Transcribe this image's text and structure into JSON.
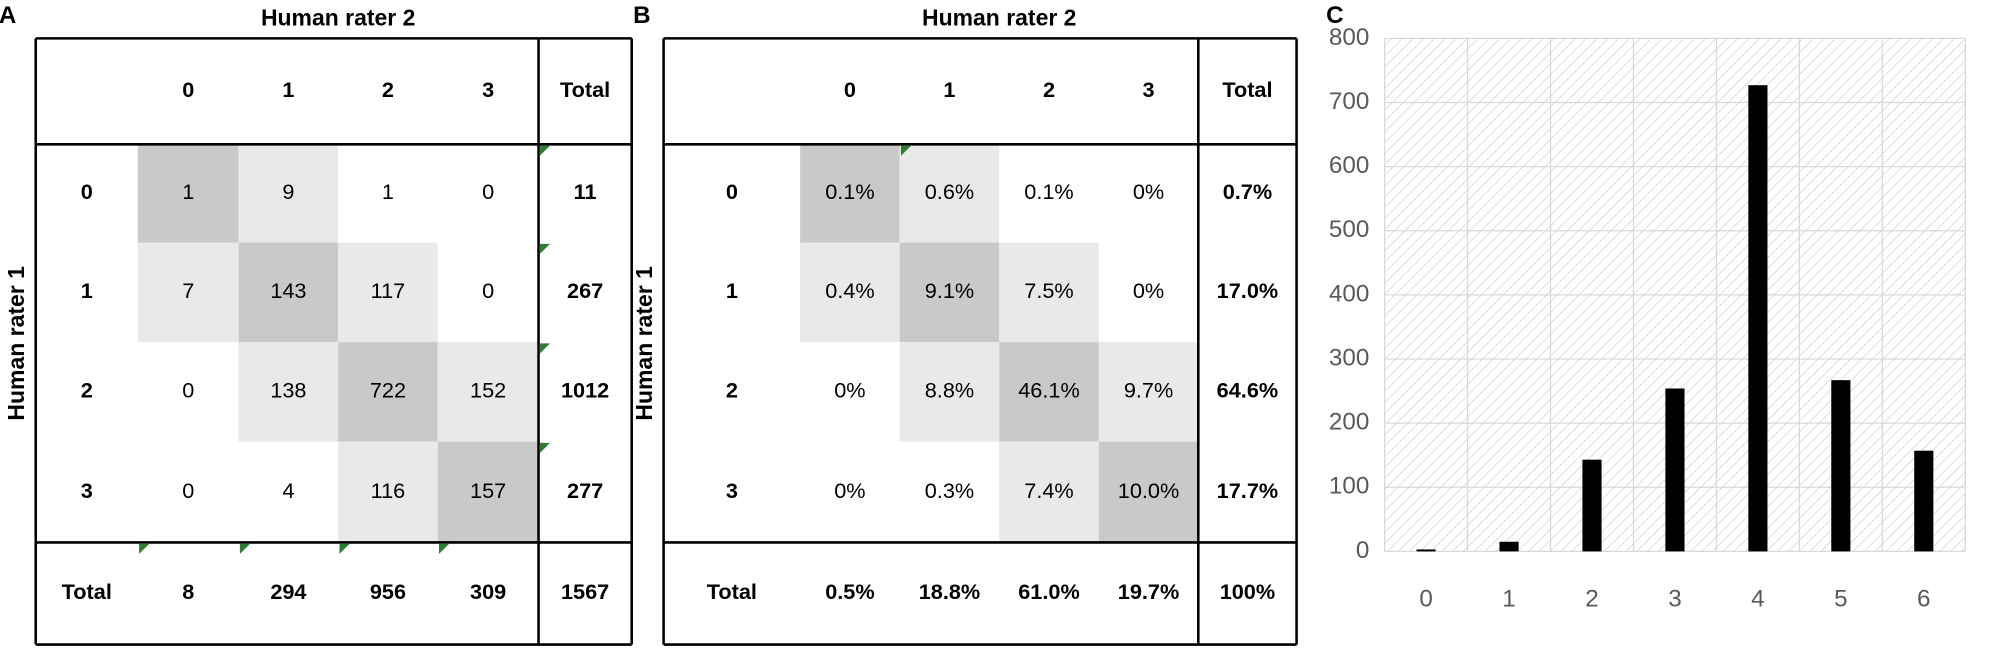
{
  "tables": [
    {
      "label": "A",
      "col_title": "Human rater 2",
      "row_title": "Human rater 1",
      "columns": [
        "0",
        "1",
        "2",
        "3",
        "Total"
      ],
      "rows": [
        {
          "label": "0",
          "cells": [
            1,
            9,
            1,
            0,
            11
          ]
        },
        {
          "label": "1",
          "cells": [
            7,
            143,
            117,
            0,
            267
          ]
        },
        {
          "label": "2",
          "cells": [
            0,
            138,
            722,
            152,
            1012
          ]
        },
        {
          "label": "3",
          "cells": [
            0,
            4,
            116,
            157,
            277
          ]
        },
        {
          "label": "Total",
          "cells": [
            8,
            294,
            956,
            309,
            1567
          ]
        }
      ]
    },
    {
      "label": "B",
      "col_title": "Human rater 2",
      "row_title": "Human rater 1",
      "columns": [
        "0",
        "1",
        "2",
        "3",
        "Total"
      ],
      "rows": [
        {
          "label": "0",
          "cells": [
            "0.1%",
            "0.6%",
            "0.1%",
            "0%",
            "0.7%"
          ]
        },
        {
          "label": "1",
          "cells": [
            "0.4%",
            "9.1%",
            "7.5%",
            "0%",
            "17.0%"
          ]
        },
        {
          "label": "2",
          "cells": [
            "0%",
            "8.8%",
            "46.1%",
            "9.7%",
            "64.6%"
          ]
        },
        {
          "label": "3",
          "cells": [
            "0%",
            "0.3%",
            "7.4%",
            "10.0%",
            "17.7%"
          ]
        },
        {
          "label": "Total",
          "cells": [
            "0.5%",
            "18.8%",
            "61.0%",
            "19.7%",
            "100%"
          ]
        }
      ]
    }
  ],
  "chart_data": {
    "label": "C",
    "type": "bar",
    "categories": [
      "0",
      "1",
      "2",
      "3",
      "4",
      "5",
      "6"
    ],
    "values": [
      3,
      15,
      143,
      254,
      727,
      267,
      157
    ],
    "color": "#000000",
    "ylim": [
      0,
      800
    ],
    "yticks": [
      0,
      100,
      200,
      300,
      400,
      500,
      600,
      700,
      800
    ],
    "grid": true
  }
}
